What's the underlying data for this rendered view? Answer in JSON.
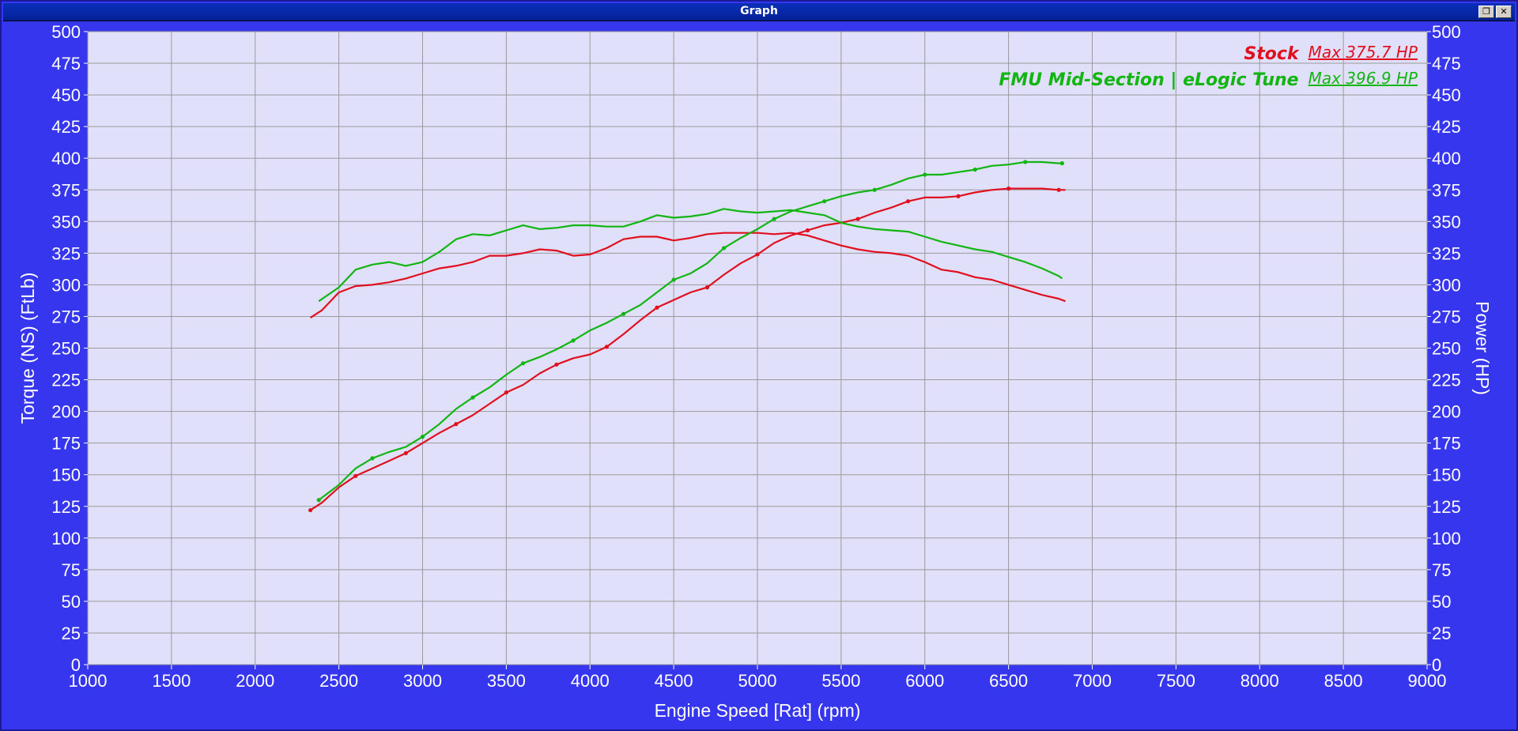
{
  "window": {
    "title": "Graph",
    "restore_icon": "restore-icon",
    "close_icon": "close-icon"
  },
  "colors": {
    "background": "#3636ee",
    "plot_bg": "#e0e0fb",
    "grid": "#9a9a9a",
    "stock": "#e0101e",
    "tune": "#12b512"
  },
  "chart_data": {
    "type": "line",
    "xlabel": "Engine Speed [Rat] (rpm)",
    "ylabel_left": "Torque (NS) (FtLb)",
    "ylabel_right": "Power (HP)",
    "xlim": [
      1000,
      9000
    ],
    "ylim": [
      0,
      500
    ],
    "x_ticks": [
      "1000",
      "1500",
      "2000",
      "2500",
      "3000",
      "3500",
      "4000",
      "4500",
      "5000",
      "5500",
      "6000",
      "6500",
      "7000",
      "7500",
      "8000",
      "8500",
      "9000"
    ],
    "y_ticks": [
      "0",
      "25",
      "50",
      "75",
      "100",
      "125",
      "150",
      "175",
      "200",
      "225",
      "250",
      "275",
      "300",
      "325",
      "350",
      "375",
      "400",
      "425",
      "450",
      "475",
      "500"
    ],
    "grid": true,
    "legend_position": "top-right",
    "legend": [
      {
        "name": "Stock",
        "max_label": "Max 375.7 HP",
        "color": "#e0101e"
      },
      {
        "name": "FMU Mid-Section | eLogic Tune",
        "max_label": "Max 396.9 HP",
        "color": "#12b512"
      }
    ],
    "series": [
      {
        "name": "Stock",
        "quantity": "Power (HP)",
        "color": "#e0101e",
        "x": [
          2330,
          2400,
          2500,
          2600,
          2700,
          2800,
          2900,
          3000,
          3100,
          3200,
          3300,
          3400,
          3500,
          3600,
          3700,
          3800,
          3900,
          4000,
          4100,
          4200,
          4300,
          4400,
          4500,
          4600,
          4700,
          4800,
          4900,
          5000,
          5100,
          5200,
          5300,
          5400,
          5500,
          5600,
          5700,
          5800,
          5900,
          6000,
          6100,
          6200,
          6300,
          6400,
          6500,
          6600,
          6700,
          6800,
          6840
        ],
        "y": [
          122,
          128,
          140,
          149,
          155,
          161,
          167,
          175,
          183,
          190,
          197,
          206,
          215,
          221,
          230,
          237,
          242,
          245,
          251,
          261,
          272,
          282,
          288,
          294,
          298,
          308,
          317,
          324,
          333,
          339,
          343,
          347,
          349,
          352,
          357,
          361,
          366,
          369,
          369,
          370,
          373,
          375,
          376,
          376,
          376,
          375,
          375
        ]
      },
      {
        "name": "Stock",
        "quantity": "Torque (FtLb)",
        "color": "#e0101e",
        "x": [
          2330,
          2400,
          2500,
          2600,
          2700,
          2800,
          2900,
          3000,
          3100,
          3200,
          3300,
          3400,
          3500,
          3600,
          3700,
          3800,
          3900,
          4000,
          4100,
          4200,
          4300,
          4400,
          4500,
          4600,
          4700,
          4800,
          4900,
          5000,
          5100,
          5200,
          5300,
          5400,
          5500,
          5600,
          5700,
          5800,
          5900,
          6000,
          6100,
          6200,
          6300,
          6400,
          6500,
          6600,
          6700,
          6800,
          6840
        ],
        "y": [
          274,
          280,
          294,
          299,
          300,
          302,
          305,
          309,
          313,
          315,
          318,
          323,
          323,
          325,
          328,
          327,
          323,
          324,
          329,
          336,
          338,
          338,
          335,
          337,
          340,
          341,
          341,
          341,
          340,
          341,
          339,
          335,
          331,
          328,
          326,
          325,
          323,
          318,
          312,
          310,
          306,
          304,
          300,
          296,
          292,
          289,
          287
        ]
      },
      {
        "name": "FMU Mid-Section | eLogic Tune",
        "quantity": "Power (HP)",
        "color": "#12b512",
        "x": [
          2380,
          2500,
          2600,
          2700,
          2800,
          2900,
          3000,
          3100,
          3200,
          3300,
          3400,
          3500,
          3600,
          3700,
          3800,
          3900,
          4000,
          4100,
          4200,
          4300,
          4400,
          4500,
          4600,
          4700,
          4800,
          4900,
          5000,
          5100,
          5200,
          5300,
          5400,
          5500,
          5600,
          5700,
          5800,
          5900,
          6000,
          6100,
          6200,
          6300,
          6400,
          6500,
          6600,
          6700,
          6800,
          6820
        ],
        "y": [
          130,
          142,
          155,
          163,
          168,
          172,
          180,
          190,
          202,
          211,
          219,
          229,
          238,
          243,
          249,
          256,
          264,
          270,
          277,
          284,
          294,
          304,
          309,
          317,
          329,
          337,
          344,
          352,
          358,
          362,
          366,
          370,
          373,
          375,
          379,
          384,
          387,
          387,
          389,
          391,
          394,
          395,
          397,
          397,
          396,
          396
        ]
      },
      {
        "name": "FMU Mid-Section | eLogic Tune",
        "quantity": "Torque (FtLb)",
        "color": "#12b512",
        "x": [
          2380,
          2500,
          2600,
          2700,
          2800,
          2900,
          3000,
          3100,
          3200,
          3300,
          3400,
          3500,
          3600,
          3700,
          3800,
          3900,
          4000,
          4100,
          4200,
          4300,
          4400,
          4500,
          4600,
          4700,
          4800,
          4900,
          5000,
          5100,
          5200,
          5300,
          5400,
          5500,
          5600,
          5700,
          5800,
          5900,
          6000,
          6100,
          6200,
          6300,
          6400,
          6500,
          6600,
          6700,
          6800,
          6820
        ],
        "y": [
          287,
          298,
          312,
          316,
          318,
          315,
          318,
          326,
          336,
          340,
          339,
          343,
          347,
          344,
          345,
          347,
          347,
          346,
          346,
          350,
          355,
          353,
          354,
          356,
          360,
          358,
          357,
          358,
          359,
          357,
          355,
          349,
          346,
          344,
          343,
          342,
          338,
          334,
          331,
          328,
          326,
          322,
          318,
          313,
          307,
          305
        ]
      }
    ]
  }
}
